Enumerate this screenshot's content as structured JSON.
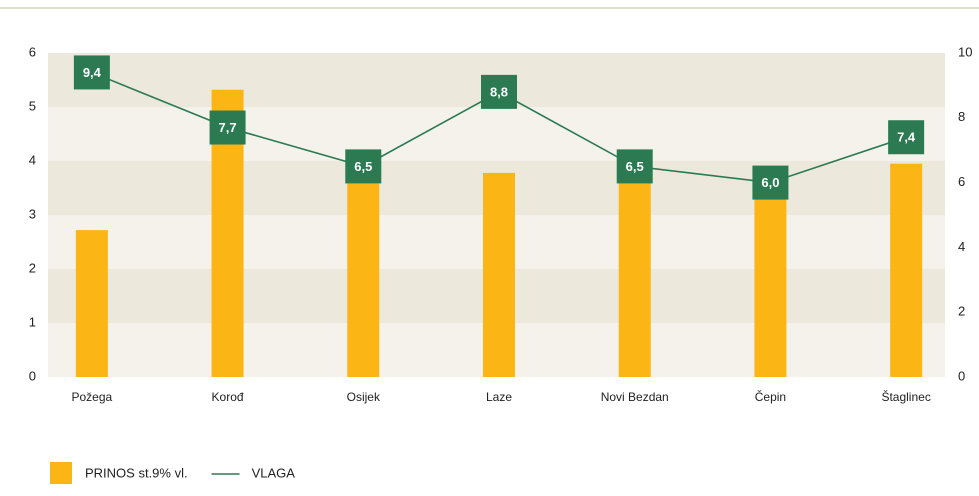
{
  "chart_data": {
    "type": "bar_line",
    "categories": [
      "Požega",
      "Korođ",
      "Osijek",
      "Laze",
      "Novi Bezdan",
      "Čepin",
      "Štaglinec"
    ],
    "series": [
      {
        "name": "PRINOS st.9% vl.",
        "color": "#fbb615",
        "type": "bar",
        "values": [
          2.72,
          5.32,
          3.95,
          3.78,
          3.75,
          3.88,
          3.95
        ]
      },
      {
        "name": "VLAGA",
        "color": "#2b7a52",
        "type": "line",
        "axis": "y2",
        "values": [
          9.4,
          7.7,
          6.5,
          8.8,
          6.5,
          6.0,
          7.4
        ],
        "value_labels": [
          "9,4",
          "7,7",
          "6,5",
          "8,8",
          "6,5",
          "6,0",
          "7,4"
        ]
      }
    ],
    "ylim": [
      0,
      6
    ],
    "yticks": [
      0,
      1,
      2,
      3,
      4,
      5,
      6
    ],
    "y2lim": [
      0,
      10
    ],
    "y2ticks": [
      0,
      2,
      4,
      6,
      8,
      10
    ],
    "grid": true,
    "legend": "bottom-left"
  }
}
